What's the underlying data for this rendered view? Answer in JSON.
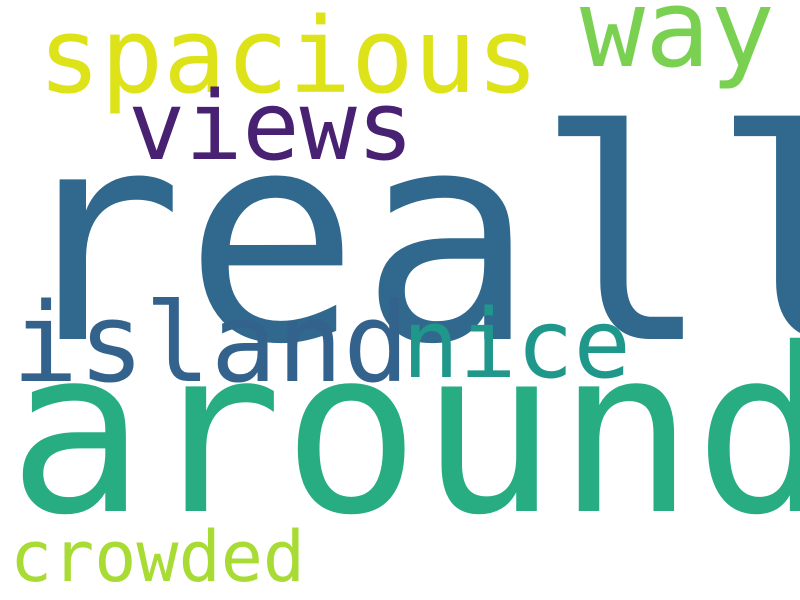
{
  "background_color": "#ffffff",
  "words": [
    {
      "id": "really",
      "text": "really",
      "color": "#31688e"
    },
    {
      "id": "around",
      "text": "around",
      "color": "#27ad81"
    },
    {
      "id": "spacious",
      "text": "spacious",
      "color": "#dde318"
    },
    {
      "id": "way",
      "text": "way",
      "color": "#7ad151"
    },
    {
      "id": "views",
      "text": "views",
      "color": "#482173"
    },
    {
      "id": "island",
      "text": "island",
      "color": "#33638d"
    },
    {
      "id": "nice",
      "text": "nice",
      "color": "#1f978b"
    },
    {
      "id": "crowded",
      "text": "crowded",
      "color": "#a8db34"
    }
  ]
}
